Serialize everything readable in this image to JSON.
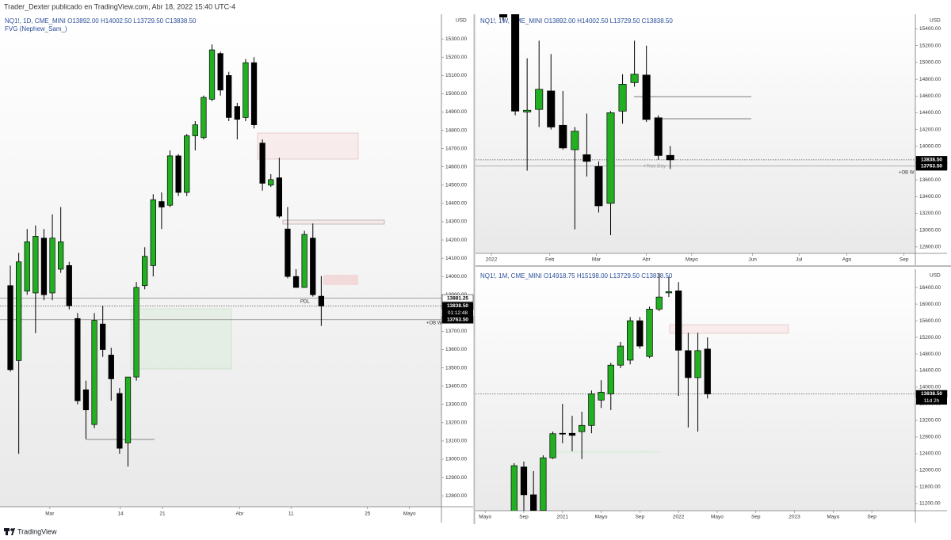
{
  "header": "Trader_Dexter publicado en TradingView.com, Abr 18, 2022 15:40 UTC-4",
  "footer": "TradingView",
  "chart_data": [
    {
      "type": "candlestick",
      "title": "NQ1!, 1D, CME_MINI  O13892.00 H14002.50 L13729.50 C13838.50",
      "subtitle": "FVG (Nephew_Sam_)",
      "unit": "USD",
      "up_color": "#22b022",
      "down_color": "#000000",
      "xlim": [
        -1.23,
        51.3
      ],
      "xticks": [
        {
          "value": 4.7,
          "label": "Mar"
        },
        {
          "value": 13.1,
          "label": "14"
        },
        {
          "value": 18.1,
          "label": "21"
        },
        {
          "value": 27.3,
          "label": "Abr"
        },
        {
          "value": 33.4,
          "label": "11"
        },
        {
          "value": 42.5,
          "label": "25"
        },
        {
          "value": 47.5,
          "label": "Mayo"
        }
      ],
      "ylim": [
        12740,
        15435
      ],
      "yticks": [
        {
          "value": 12800,
          "label": "12800.00"
        },
        {
          "value": 12900,
          "label": "12900.00"
        },
        {
          "value": 13000,
          "label": "13000.00"
        },
        {
          "value": 13100,
          "label": "13100.00"
        },
        {
          "value": 13200,
          "label": "13200.00"
        },
        {
          "value": 13300,
          "label": "13300.00"
        },
        {
          "value": 13400,
          "label": "13400.00"
        },
        {
          "value": 13500,
          "label": "13500.00"
        },
        {
          "value": 13600,
          "label": "13600.00"
        },
        {
          "value": 13700,
          "label": "13700.00"
        },
        {
          "value": 13800,
          "label": "13800.00"
        },
        {
          "value": 13900,
          "label": "13900.00"
        },
        {
          "value": 14000,
          "label": "14000.00"
        },
        {
          "value": 14100,
          "label": "14100.00"
        },
        {
          "value": 14200,
          "label": "14200.00"
        },
        {
          "value": 14300,
          "label": "14300.00"
        },
        {
          "value": 14400,
          "label": "14400.00"
        },
        {
          "value": 14500,
          "label": "14500.00"
        },
        {
          "value": 14600,
          "label": "14600.00"
        },
        {
          "value": 14700,
          "label": "14700.00"
        },
        {
          "value": 14800,
          "label": "14800.00"
        },
        {
          "value": 14900,
          "label": "14900.00"
        },
        {
          "value": 15000,
          "label": "15000.00"
        },
        {
          "value": 15100,
          "label": "15100.00"
        },
        {
          "value": 15200,
          "label": "15200.00"
        },
        {
          "value": 15300,
          "label": "15300.00"
        }
      ],
      "open": [
        13950,
        13540,
        13920,
        13910,
        14210,
        13910,
        14040,
        14060,
        13770,
        13380,
        13190,
        13740,
        13570,
        13360,
        13090,
        13450,
        13950,
        14060,
        14410,
        14390,
        14660,
        14460,
        14770,
        14760,
        14970,
        15220,
        15100,
        14930,
        14870,
        15170,
        14730,
        14500,
        14540,
        14260,
        14000,
        13940,
        14210,
        13892
      ],
      "high": [
        14060,
        14130,
        14260,
        14280,
        14260,
        14340,
        14380,
        14080,
        13800,
        13430,
        13800,
        13840,
        13610,
        13390,
        13450,
        13970,
        14160,
        14450,
        14460,
        14690,
        14670,
        14780,
        14850,
        14990,
        15270,
        15230,
        15120,
        14950,
        15190,
        15200,
        14750,
        14560,
        14650,
        14380,
        14040,
        14250,
        14290,
        14002.5
      ],
      "low": [
        13480,
        13030,
        13900,
        13690,
        13870,
        13870,
        14020,
        13820,
        13300,
        13110,
        13170,
        13560,
        13320,
        13030,
        12960,
        13430,
        13930,
        14000,
        14260,
        14380,
        14440,
        14440,
        14690,
        14750,
        14960,
        14990,
        14850,
        14750,
        14850,
        14810,
        14470,
        14490,
        14320,
        13990,
        13940,
        13940,
        13890,
        13729.5
      ],
      "close": [
        13490,
        14080,
        14190,
        14220,
        13900,
        14210,
        14190,
        13840,
        13320,
        13270,
        13760,
        13600,
        13440,
        13060,
        13450,
        13940,
        14110,
        14420,
        14380,
        14660,
        14460,
        14770,
        14830,
        14980,
        15240,
        15020,
        14870,
        14860,
        15170,
        14830,
        14510,
        14530,
        14330,
        14000,
        13940,
        14230,
        13900,
        13838.5
      ],
      "price_tags": [
        {
          "value": 13881.25,
          "label": "13881.25",
          "color": "#ffffff"
        },
        {
          "value": 13838.5,
          "label": "13838.50",
          "timer": "01:12:48",
          "color": "#000000"
        },
        {
          "value": 13763.5,
          "label": "13763.50",
          "color": "#000000"
        }
      ],
      "annotations": [
        "PDL",
        "+OB W"
      ]
    },
    {
      "type": "candlestick",
      "title": "NQ1!, 1W, CME_MINI  O13892.00 H14002.50 L13729.50 C13838.50",
      "unit": "USD",
      "up_color": "#22b022",
      "down_color": "#000000",
      "xlim": [
        -1.33,
        35.55
      ],
      "xticks": [
        {
          "value": 0,
          "label": "2022"
        },
        {
          "value": 4.9,
          "label": "Feb"
        },
        {
          "value": 8.8,
          "label": "Mar"
        },
        {
          "value": 13,
          "label": "Abr"
        },
        {
          "value": 16.8,
          "label": "Mayo"
        },
        {
          "value": 21.9,
          "label": "Jun"
        },
        {
          "value": 25.8,
          "label": "Jul"
        },
        {
          "value": 29.8,
          "label": "Ago"
        },
        {
          "value": 34.6,
          "label": "Sep"
        }
      ],
      "ylim": [
        12723,
        15575
      ],
      "yticks": [
        {
          "value": 12800,
          "label": "12800.00"
        },
        {
          "value": 13000,
          "label": "13000.00"
        },
        {
          "value": 13200,
          "label": "13200.00"
        },
        {
          "value": 13400,
          "label": "13400.00"
        },
        {
          "value": 13600,
          "label": "13600.00"
        },
        {
          "value": 13800,
          "label": "13800.00"
        },
        {
          "value": 14000,
          "label": "14000.00"
        },
        {
          "value": 14200,
          "label": "14200.00"
        },
        {
          "value": 14400,
          "label": "14400.00"
        },
        {
          "value": 14600,
          "label": "14600.00"
        },
        {
          "value": 14800,
          "label": "14800.00"
        },
        {
          "value": 15000,
          "label": "15000.00"
        },
        {
          "value": 15200,
          "label": "15200.00"
        },
        {
          "value": 15400,
          "label": "15400.00"
        }
      ],
      "open": [
        15660,
        15630,
        15610,
        14410,
        14440,
        14660,
        14250,
        13960,
        13900,
        13760,
        13320,
        14420,
        14760,
        14850,
        14340,
        13892
      ],
      "high": [
        15690,
        15670,
        15650,
        15050,
        15260,
        15100,
        14660,
        14230,
        14390,
        13820,
        14420,
        14860,
        15260,
        15200,
        14370,
        14002.5
      ],
      "low": [
        15590,
        15490,
        14370,
        13710,
        14230,
        14200,
        13960,
        13010,
        13640,
        13210,
        12940,
        14270,
        14710,
        14290,
        13840,
        13729.5
      ],
      "close": [
        15610,
        15540,
        14420,
        14430,
        14680,
        14230,
        13980,
        14180,
        13820,
        13290,
        14400,
        14740,
        14860,
        14320,
        13890,
        13838.5
      ],
      "price_tags": [
        {
          "value": 13838.5,
          "label": "13838.50",
          "timer": "4d 2h",
          "color": "#000000"
        },
        {
          "value": 13763.5,
          "label": "13763.50",
          "color": "#000000"
        }
      ],
      "annotations": [
        "+True Day",
        "+OB W"
      ]
    },
    {
      "type": "candlestick",
      "title": "NQ1!, 1M, CME_MINI  O14918.75 H15198.00 L13729.50 C13838.50",
      "unit": "USD",
      "up_color": "#22b022",
      "down_color": "#000000",
      "xlim": [
        -4.0,
        41.5
      ],
      "xticks": [
        {
          "value": -3,
          "label": "Mayo"
        },
        {
          "value": 1,
          "label": "Sep"
        },
        {
          "value": 5,
          "label": "2021"
        },
        {
          "value": 9,
          "label": "Mayo"
        },
        {
          "value": 13,
          "label": "Sep"
        },
        {
          "value": 17,
          "label": "2022"
        },
        {
          "value": 21,
          "label": "Mayo"
        },
        {
          "value": 25,
          "label": "Sep"
        },
        {
          "value": 29,
          "label": "2023"
        },
        {
          "value": 33,
          "label": "Mayo"
        },
        {
          "value": 37,
          "label": "Sep"
        }
      ],
      "ylim": [
        11027,
        16840
      ],
      "yticks": [
        {
          "value": 11200,
          "label": "11200.00"
        },
        {
          "value": 11600,
          "label": "11600.00"
        },
        {
          "value": 12000,
          "label": "12000.00"
        },
        {
          "value": 12400,
          "label": "12400.00"
        },
        {
          "value": 12800,
          "label": "12800.00"
        },
        {
          "value": 13200,
          "label": "13200.00"
        },
        {
          "value": 13600,
          "label": "13600.00"
        },
        {
          "value": 14000,
          "label": "14000.00"
        },
        {
          "value": 14400,
          "label": "14400.00"
        },
        {
          "value": 14800,
          "label": "14800.00"
        },
        {
          "value": 15200,
          "label": "15200.00"
        },
        {
          "value": 15600,
          "label": "15600.00"
        },
        {
          "value": 16000,
          "label": "16000.00"
        },
        {
          "value": 16400,
          "label": "16400.00"
        }
      ],
      "open": [
        10900,
        12080,
        11410,
        11030,
        12300,
        12890,
        12890,
        12930,
        13080,
        13690,
        13840,
        14530,
        14650,
        15600,
        14740,
        15880,
        16270,
        16320,
        14880,
        14230,
        14918.75
      ],
      "high": [
        12170,
        12210,
        11980,
        12360,
        12930,
        13600,
        13310,
        13410,
        13920,
        14170,
        14590,
        15090,
        15690,
        15690,
        15940,
        16740,
        16650,
        16530,
        15310,
        15310,
        15198
      ],
      "low": [
        10740,
        10650,
        10900,
        10740,
        12270,
        12650,
        12460,
        12270,
        12890,
        13500,
        13450,
        14460,
        14550,
        14930,
        14700,
        15830,
        16170,
        13790,
        13030,
        12930,
        13729.5
      ],
      "close": [
        12110,
        11410,
        11030,
        12300,
        12880,
        12880,
        12840,
        13080,
        13840,
        13880,
        14530,
        14990,
        15600,
        14990,
        15880,
        16170,
        16300,
        14890,
        14230,
        14880,
        13838.5
      ],
      "price_tags": [
        {
          "value": 13838.5,
          "label": "13838.50",
          "timer": "11d 2h",
          "color": "#000000"
        }
      ],
      "annotations": []
    }
  ]
}
